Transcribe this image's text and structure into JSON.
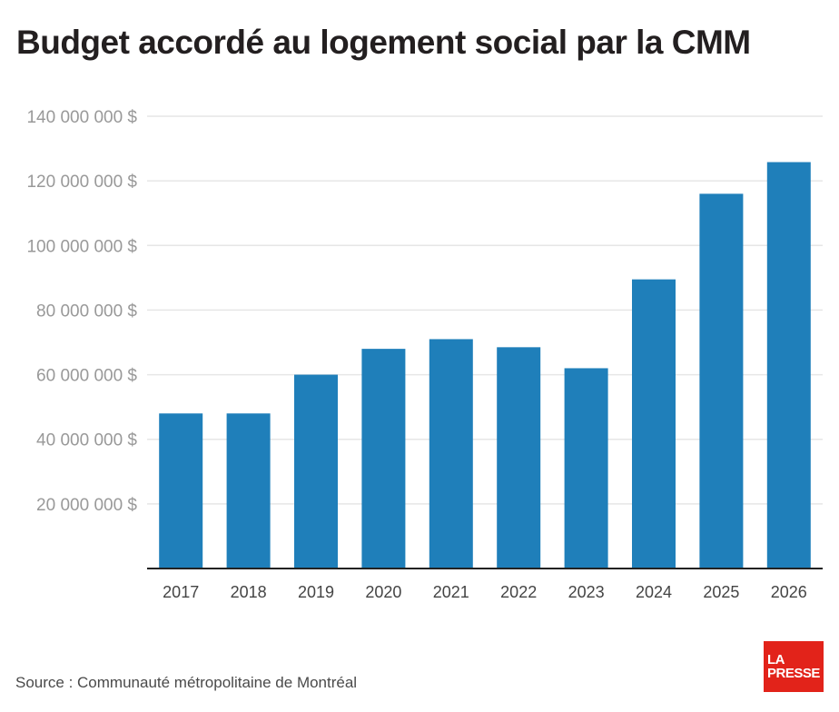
{
  "title": "Budget accordé au logement social par la CMM",
  "source": "Source : Communauté métropolitaine de Montréal",
  "logo": {
    "line1": "LA",
    "line2": "PRESSE",
    "color": "#e2231a"
  },
  "chart_data": {
    "type": "bar",
    "categories": [
      "2017",
      "2018",
      "2019",
      "2020",
      "2021",
      "2022",
      "2023",
      "2024",
      "2025",
      "2026"
    ],
    "values": [
      48000000,
      48000000,
      60000000,
      68000000,
      71000000,
      68500000,
      62000000,
      89500000,
      116000000,
      125800000
    ],
    "ylim": [
      0,
      140000000
    ],
    "yticks": [
      20000000,
      40000000,
      60000000,
      80000000,
      100000000,
      120000000,
      140000000
    ],
    "ytick_labels": [
      "20 000 000 $",
      "40 000 000 $",
      "60 000 000 $",
      "80 000 000 $",
      "100 000 000 $",
      "120 000 000 $",
      "140 000 000 $"
    ],
    "grid": true,
    "bar_color": "#1f7fba",
    "grid_color": "#e6e6e6",
    "axis_color": "#222222",
    "tick_color": "#999999",
    "xlabel": "",
    "ylabel": ""
  }
}
